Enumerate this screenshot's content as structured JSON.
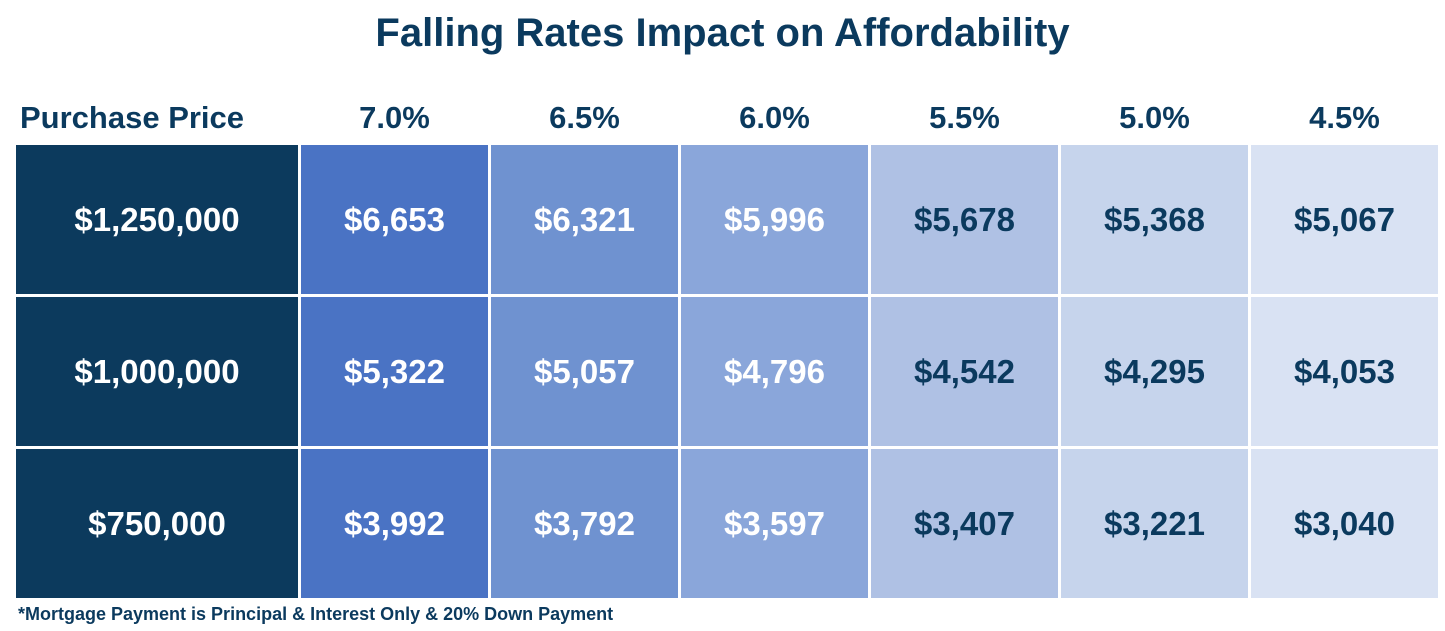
{
  "title": "Falling Rates Impact on Affordability",
  "footnote": "*Mortgage Payment is Principal & Interest Only & 20% Down Payment",
  "colors": {
    "price_col": "#0c3a5d",
    "rate_cols": [
      "#4a73c4",
      "#6f92d0",
      "#8aa6da",
      "#afc1e4",
      "#c6d4ec",
      "#d9e2f3"
    ],
    "text_light": "#ffffff",
    "text_dark": "#0b3a5e"
  },
  "chart_data": {
    "type": "table",
    "title": "Falling Rates Impact on Affordability",
    "row_header_label": "Purchase Price",
    "columns": [
      "7.0%",
      "6.5%",
      "6.0%",
      "5.5%",
      "5.0%",
      "4.5%"
    ],
    "rows": [
      {
        "price": "$1,250,000",
        "values": [
          "$6,653",
          "$6,321",
          "$5,996",
          "$5,678",
          "$5,368",
          "$5,067"
        ]
      },
      {
        "price": "$1,000,000",
        "values": [
          "$5,322",
          "$5,057",
          "$4,796",
          "$4,542",
          "$4,295",
          "$4,053"
        ]
      },
      {
        "price": "$750,000",
        "values": [
          "$3,992",
          "$3,792",
          "$3,597",
          "$3,407",
          "$3,221",
          "$3,040"
        ]
      }
    ],
    "note": "*Mortgage Payment is Principal & Interest Only & 20% Down Payment"
  }
}
